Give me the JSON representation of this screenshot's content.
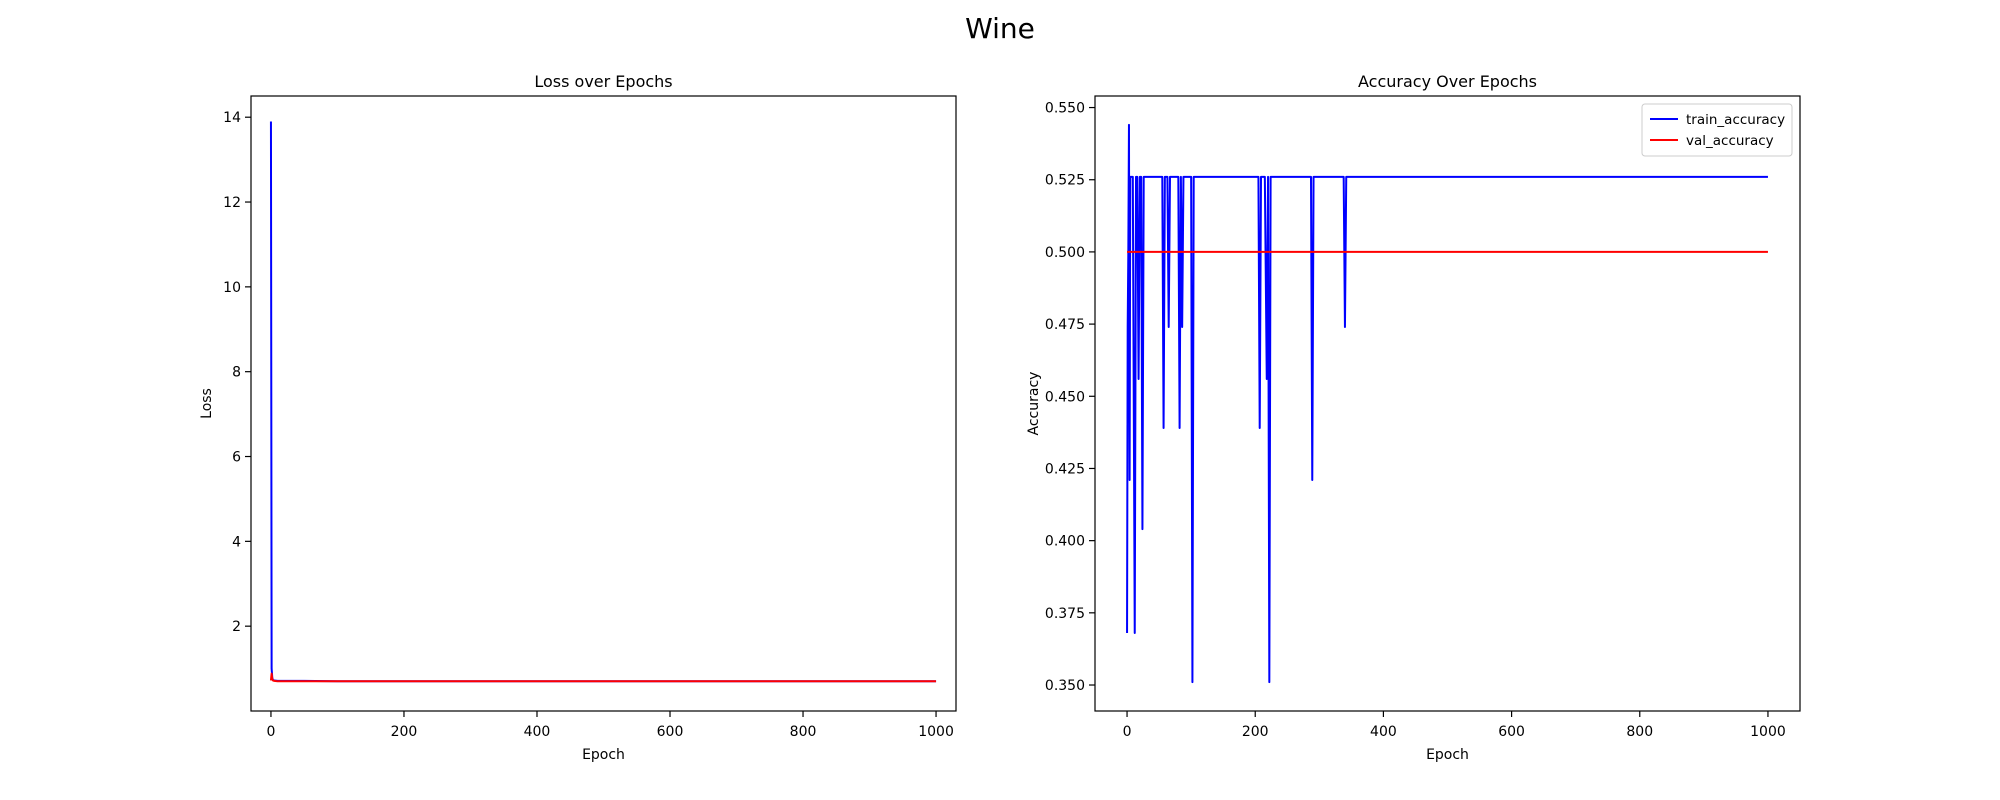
{
  "figure": {
    "suptitle": "Wine"
  },
  "chart_data": [
    {
      "type": "line",
      "title": "Loss over Epochs",
      "xlabel": "Epoch",
      "ylabel": "Loss",
      "xlim": [
        -30,
        1030
      ],
      "ylim": [
        0,
        14.5
      ],
      "xticks": [
        0,
        200,
        400,
        600,
        800,
        1000
      ],
      "yticks": [
        2,
        4,
        6,
        8,
        10,
        12,
        14
      ],
      "grid": false,
      "legend": null,
      "series": [
        {
          "color": "#0000ff",
          "x": [
            0,
            1,
            2,
            3,
            5,
            10,
            20,
            50,
            100,
            200,
            400,
            600,
            800,
            1000
          ],
          "values": [
            13.9,
            1.0,
            0.78,
            0.73,
            0.72,
            0.71,
            0.71,
            0.71,
            0.7,
            0.7,
            0.7,
            0.7,
            0.7,
            0.7
          ]
        },
        {
          "color": "#ff0000",
          "x": [
            0,
            1,
            2,
            3,
            5,
            10,
            20,
            50,
            100,
            200,
            400,
            600,
            800,
            1000
          ],
          "values": [
            0.72,
            0.88,
            0.76,
            0.72,
            0.71,
            0.7,
            0.7,
            0.7,
            0.7,
            0.7,
            0.7,
            0.7,
            0.7,
            0.7
          ]
        }
      ]
    },
    {
      "type": "line",
      "title": "Accuracy Over Epochs",
      "xlabel": "Epoch",
      "ylabel": "Accuracy",
      "xlim": [
        -50,
        1050
      ],
      "ylim": [
        0.341,
        0.554
      ],
      "xticks": [
        0,
        200,
        400,
        600,
        800,
        1000
      ],
      "yticks": [
        0.35,
        0.375,
        0.4,
        0.425,
        0.45,
        0.475,
        0.5,
        0.525,
        0.55
      ],
      "ytick_labels": [
        "0.350",
        "0.375",
        "0.400",
        "0.425",
        "0.450",
        "0.475",
        "0.500",
        "0.525",
        "0.550"
      ],
      "grid": false,
      "legend": "top-right",
      "series": [
        {
          "name": "train_accuracy",
          "color": "#0000ff",
          "x": [
            0,
            1,
            2,
            3,
            4,
            5,
            7,
            9,
            12,
            14,
            16,
            18,
            20,
            22,
            24,
            26,
            28,
            30,
            32,
            34,
            36,
            40,
            55,
            57,
            59,
            63,
            65,
            67,
            69,
            80,
            82,
            84,
            86,
            88,
            90,
            100,
            102,
            104,
            106,
            108,
            110,
            205,
            207,
            209,
            211,
            213,
            215,
            218,
            220,
            222,
            224,
            226,
            228,
            285,
            287,
            289,
            291,
            293,
            338,
            340,
            342,
            344,
            346,
            1000
          ],
          "values": [
            0.368,
            0.474,
            0.5,
            0.544,
            0.421,
            0.526,
            0.526,
            0.526,
            0.368,
            0.526,
            0.526,
            0.456,
            0.526,
            0.526,
            0.404,
            0.526,
            0.526,
            0.526,
            0.526,
            0.526,
            0.526,
            0.526,
            0.526,
            0.439,
            0.526,
            0.526,
            0.474,
            0.526,
            0.526,
            0.526,
            0.439,
            0.526,
            0.474,
            0.526,
            0.526,
            0.526,
            0.351,
            0.526,
            0.526,
            0.526,
            0.526,
            0.526,
            0.439,
            0.526,
            0.526,
            0.526,
            0.526,
            0.456,
            0.526,
            0.351,
            0.526,
            0.526,
            0.526,
            0.526,
            0.526,
            0.421,
            0.526,
            0.526,
            0.526,
            0.474,
            0.526,
            0.526,
            0.526,
            0.526
          ]
        },
        {
          "name": "val_accuracy",
          "color": "#ff0000",
          "x": [
            0,
            1000
          ],
          "values": [
            0.5,
            0.5
          ]
        }
      ]
    }
  ]
}
